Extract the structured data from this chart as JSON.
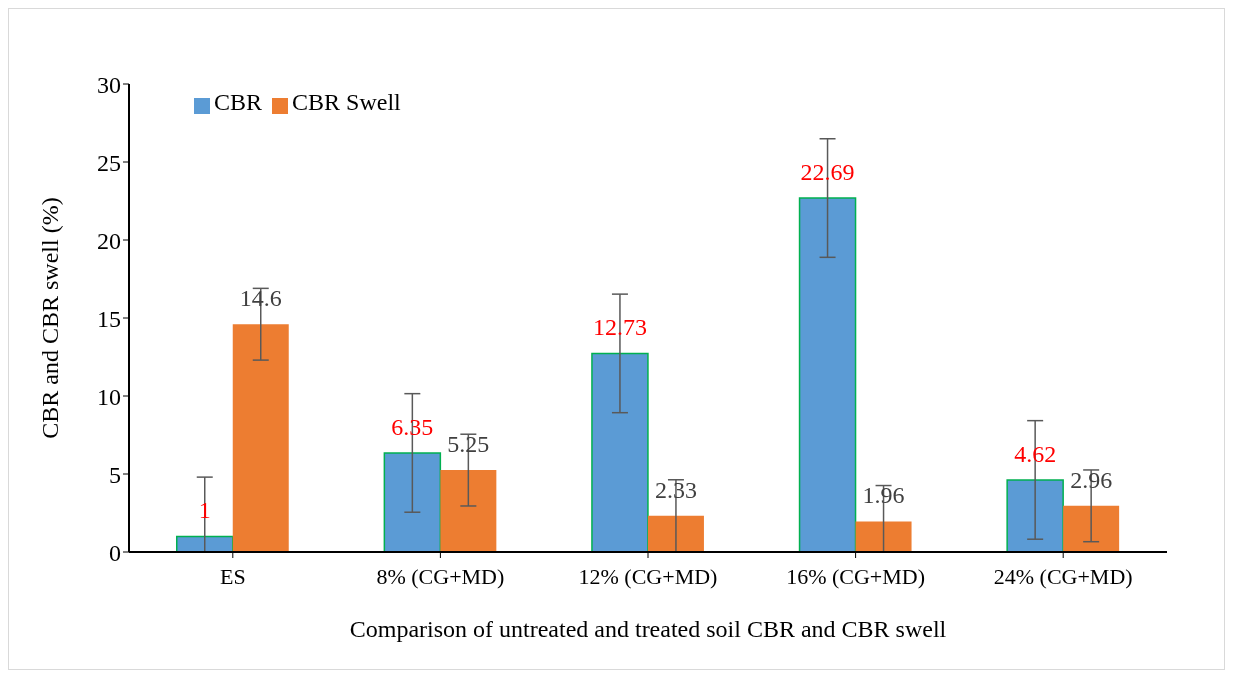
{
  "chart_data": {
    "type": "bar",
    "xlabel": "Comparison of untreated and treated soil CBR and CBR swell",
    "ylabel": "CBR and CBR swell (%)",
    "categories": [
      "ES",
      "8% (CG+MD)",
      "12% (CG+MD)",
      "16% (CG+MD)",
      "24% (CG+MD)"
    ],
    "series": [
      {
        "name": "CBR",
        "color": "#5b9bd5",
        "values": [
          1,
          6.35,
          12.73,
          22.69,
          4.62
        ],
        "errors": [
          [
            0,
            4.8
          ],
          3.8,
          3.8,
          3.8,
          3.8
        ]
      },
      {
        "name": "CBR Swell",
        "color": "#ed7d31",
        "values": [
          14.6,
          5.25,
          2.33,
          1.96,
          2.96
        ],
        "errors": [
          2.3,
          2.3,
          [
            0,
            4.63
          ],
          [
            0,
            4.26
          ],
          2.3
        ]
      }
    ],
    "ylim": [
      0,
      30
    ],
    "yticks": [
      0,
      5,
      10,
      15,
      20,
      25,
      30
    ],
    "grid": false,
    "legend": "top left",
    "data_labels": true
  }
}
